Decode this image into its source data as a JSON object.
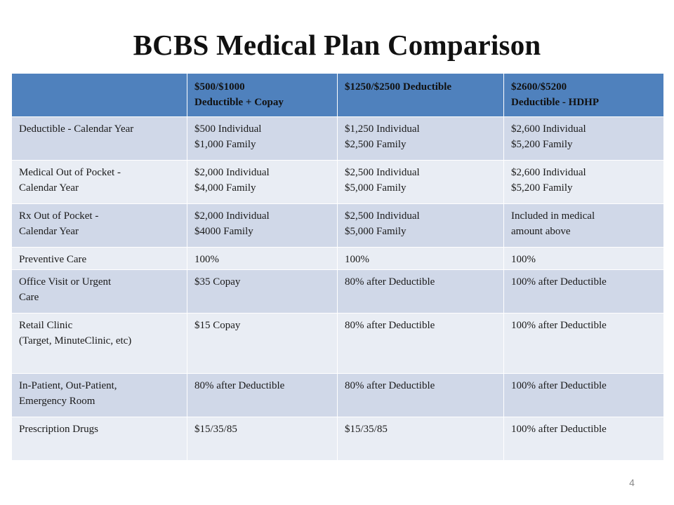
{
  "slide": {
    "title": "BCBS Medical Plan Comparison",
    "page_number": "4"
  },
  "table": {
    "headers": [
      [
        ""
      ],
      [
        "$500/$1000",
        "Deductible + Copay"
      ],
      [
        "$1250/$2500 Deductible"
      ],
      [
        "$2600/$5200",
        "Deductible - HDHP"
      ]
    ],
    "rows": [
      [
        [
          "Deductible - Calendar Year"
        ],
        [
          "$500 Individual",
          "$1,000 Family"
        ],
        [
          "$1,250 Individual",
          "$2,500 Family"
        ],
        [
          "$2,600 Individual",
          "$5,200 Family"
        ]
      ],
      [
        [
          "Medical Out of Pocket -",
          "Calendar Year"
        ],
        [
          "$2,000 Individual",
          "$4,000 Family"
        ],
        [
          "$2,500 Individual",
          "$5,000 Family"
        ],
        [
          "$2,600 Individual",
          "$5,200 Family"
        ]
      ],
      [
        [
          "Rx Out of Pocket -",
          "Calendar Year"
        ],
        [
          "$2,000 Individual",
          "$4000 Family"
        ],
        [
          "$2,500 Individual",
          "$5,000 Family"
        ],
        [
          "Included in medical",
          "amount above"
        ]
      ],
      [
        [
          "Preventive Care"
        ],
        [
          "100%"
        ],
        [
          "100%"
        ],
        [
          "100%"
        ]
      ],
      [
        [
          "Office Visit or Urgent",
          "Care"
        ],
        [
          "$35 Copay"
        ],
        [
          "80% after Deductible"
        ],
        [
          "100% after Deductible"
        ]
      ],
      [
        [
          "Retail Clinic",
          "(Target, MinuteClinic, etc)"
        ],
        [
          "$15 Copay"
        ],
        [
          "80% after Deductible"
        ],
        [
          "100% after Deductible"
        ]
      ],
      [
        [
          "In-Patient, Out-Patient,",
          "Emergency Room"
        ],
        [
          "80% after Deductible"
        ],
        [
          "80% after Deductible"
        ],
        [
          "100% after Deductible"
        ]
      ],
      [
        [
          "Prescription Drugs"
        ],
        [
          "$15/35/85"
        ],
        [
          "$15/35/85"
        ],
        [
          "100% after Deductible"
        ]
      ]
    ]
  }
}
